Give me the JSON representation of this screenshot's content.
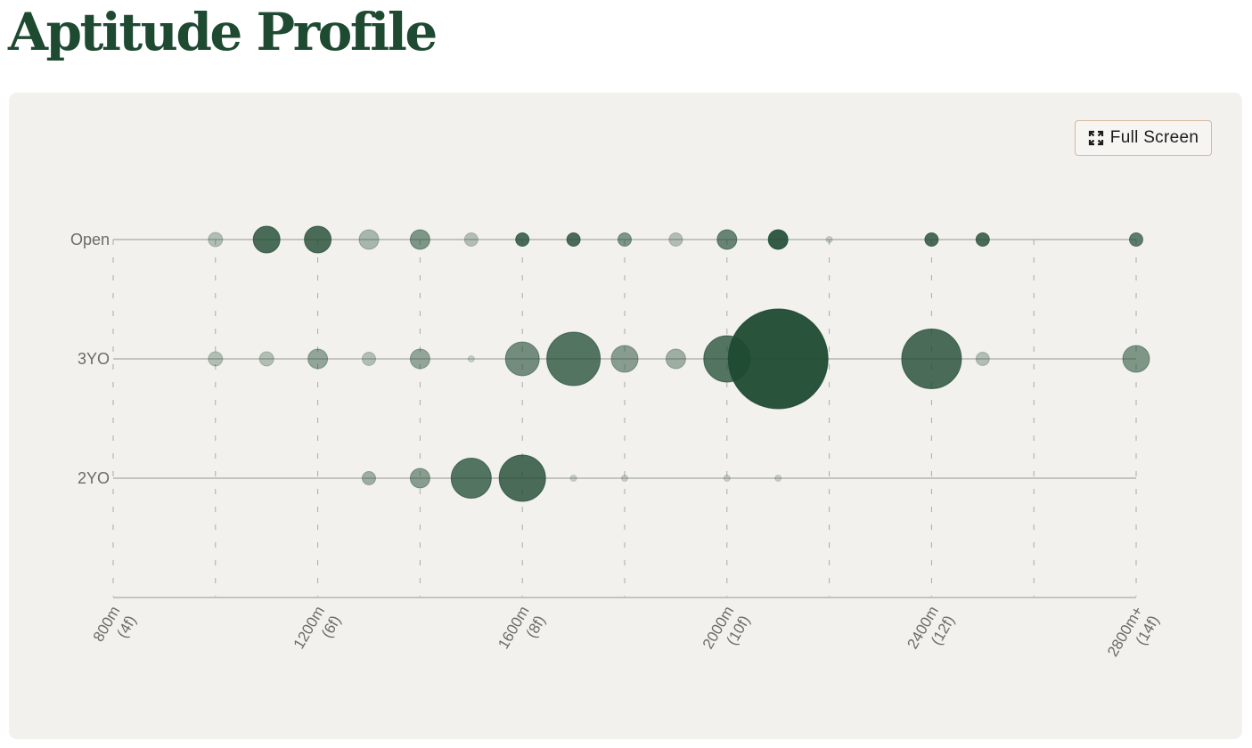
{
  "page": {
    "title": "Aptitude Profile"
  },
  "toolbar": {
    "fullscreen_label": "Full Screen",
    "fullscreen_icon": "expand-icon"
  },
  "colors": {
    "accent": "#1e4a32",
    "bubble": "#1e4a32",
    "panel_bg": "#f3f1ed",
    "axis": "#a9a9a4",
    "label": "#6b6b66"
  },
  "chart_data": {
    "type": "scatter",
    "title": "",
    "xlabel": "",
    "ylabel": "",
    "xlim": [
      800,
      2800
    ],
    "grid": "vertical dashed lines every 200m",
    "categories": [
      "Open",
      "3YO",
      "2YO"
    ],
    "x_ticks": [
      {
        "value": 800,
        "line1": "800m",
        "line2": "(4f)"
      },
      {
        "value": 1200,
        "line1": "1200m",
        "line2": "(6f)"
      },
      {
        "value": 1600,
        "line1": "1600m",
        "line2": "(8f)"
      },
      {
        "value": 2000,
        "line1": "2000m",
        "line2": "(10f)"
      },
      {
        "value": 2400,
        "line1": "2400m",
        "line2": "(12f)"
      },
      {
        "value": 2800,
        "line1": "2800m+",
        "line2": "(14f)"
      }
    ],
    "gridlines": [
      800,
      1000,
      1200,
      1400,
      1600,
      1800,
      2000,
      2200,
      2400,
      2600,
      2800
    ],
    "series": [
      {
        "points": [
          {
            "x": 1000,
            "size": 16,
            "intensity": 0.3
          },
          {
            "x": 1100,
            "size": 30,
            "intensity": 0.8
          },
          {
            "x": 1200,
            "size": 30,
            "intensity": 0.8
          },
          {
            "x": 1300,
            "size": 22,
            "intensity": 0.35
          },
          {
            "x": 1400,
            "size": 22,
            "intensity": 0.55
          },
          {
            "x": 1500,
            "size": 15,
            "intensity": 0.3
          },
          {
            "x": 1600,
            "size": 15,
            "intensity": 0.8
          },
          {
            "x": 1700,
            "size": 15,
            "intensity": 0.8
          },
          {
            "x": 1800,
            "size": 15,
            "intensity": 0.55
          },
          {
            "x": 1900,
            "size": 15,
            "intensity": 0.3
          },
          {
            "x": 2000,
            "size": 22,
            "intensity": 0.65
          },
          {
            "x": 2100,
            "size": 22,
            "intensity": 0.9
          },
          {
            "x": 2200,
            "size": 7,
            "intensity": 0.2
          },
          {
            "x": 2400,
            "size": 15,
            "intensity": 0.8
          },
          {
            "x": 2500,
            "size": 15,
            "intensity": 0.8
          },
          {
            "x": 2800,
            "size": 15,
            "intensity": 0.7
          }
        ]
      },
      {
        "points": [
          {
            "x": 1000,
            "size": 16,
            "intensity": 0.3
          },
          {
            "x": 1100,
            "size": 16,
            "intensity": 0.3
          },
          {
            "x": 1200,
            "size": 22,
            "intensity": 0.45
          },
          {
            "x": 1300,
            "size": 15,
            "intensity": 0.3
          },
          {
            "x": 1400,
            "size": 22,
            "intensity": 0.45
          },
          {
            "x": 1500,
            "size": 7,
            "intensity": 0.2
          },
          {
            "x": 1600,
            "size": 38,
            "intensity": 0.6
          },
          {
            "x": 1700,
            "size": 60,
            "intensity": 0.75
          },
          {
            "x": 1800,
            "size": 30,
            "intensity": 0.5
          },
          {
            "x": 1900,
            "size": 22,
            "intensity": 0.4
          },
          {
            "x": 2000,
            "size": 52,
            "intensity": 0.75
          },
          {
            "x": 2100,
            "size": 112,
            "intensity": 0.95
          },
          {
            "x": 2400,
            "size": 67,
            "intensity": 0.8
          },
          {
            "x": 2500,
            "size": 15,
            "intensity": 0.3
          },
          {
            "x": 2800,
            "size": 30,
            "intensity": 0.55
          }
        ]
      },
      {
        "points": [
          {
            "x": 1300,
            "size": 15,
            "intensity": 0.4
          },
          {
            "x": 1400,
            "size": 22,
            "intensity": 0.5
          },
          {
            "x": 1500,
            "size": 45,
            "intensity": 0.75
          },
          {
            "x": 1600,
            "size": 52,
            "intensity": 0.8
          },
          {
            "x": 1700,
            "size": 7,
            "intensity": 0.2
          },
          {
            "x": 1800,
            "size": 7,
            "intensity": 0.2
          },
          {
            "x": 2000,
            "size": 7,
            "intensity": 0.2
          },
          {
            "x": 2100,
            "size": 7,
            "intensity": 0.2
          }
        ]
      }
    ]
  }
}
